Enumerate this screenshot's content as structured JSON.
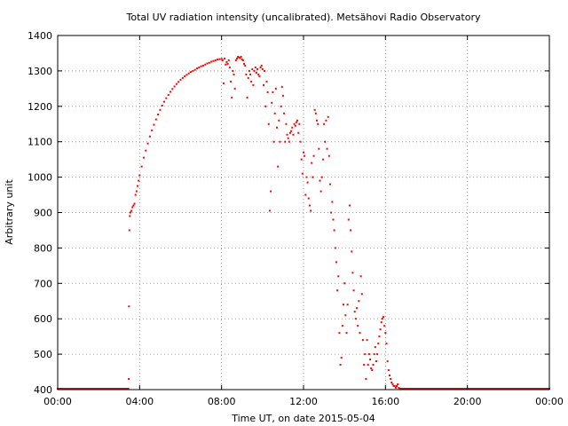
{
  "chart_data": {
    "type": "scatter",
    "title": "Total UV radiation intensity (uncalibrated). Metsähovi Radio Observatory",
    "xlabel": "Time UT, on date 2015-05-04",
    "ylabel": "Arbitrary unit",
    "xlim": [
      0,
      24
    ],
    "ylim": [
      400,
      1400
    ],
    "x_ticks": [
      0,
      4,
      8,
      12,
      16,
      20,
      24
    ],
    "x_tick_labels": [
      "00:00",
      "04:00",
      "08:00",
      "12:00",
      "16:00",
      "20:00",
      "00:00"
    ],
    "y_ticks": [
      400,
      500,
      600,
      700,
      800,
      900,
      1000,
      1100,
      1200,
      1300,
      1400
    ],
    "grid": true,
    "marker_color": "#ff0000",
    "series": [
      {
        "points": [
          [
            0.0,
            400
          ],
          [
            0.25,
            400
          ],
          [
            0.5,
            400
          ],
          [
            0.75,
            400
          ],
          [
            1.0,
            400
          ],
          [
            1.25,
            400
          ],
          [
            1.5,
            400
          ],
          [
            1.75,
            400
          ],
          [
            2.0,
            400
          ],
          [
            2.25,
            400
          ],
          [
            2.5,
            400
          ],
          [
            2.75,
            400
          ],
          [
            3.0,
            400
          ],
          [
            3.25,
            400
          ],
          [
            3.45,
            400
          ],
          [
            3.47,
            430
          ],
          [
            3.48,
            635
          ],
          [
            3.5,
            850
          ],
          [
            3.52,
            890
          ],
          [
            3.55,
            900
          ],
          [
            3.6,
            905
          ],
          [
            3.65,
            915
          ],
          [
            3.7,
            920
          ],
          [
            3.75,
            925
          ],
          [
            3.8,
            950
          ],
          [
            3.85,
            960
          ],
          [
            3.9,
            975
          ],
          [
            3.95,
            990
          ],
          [
            4.0,
            1005
          ],
          [
            4.1,
            1030
          ],
          [
            4.2,
            1055
          ],
          [
            4.3,
            1075
          ],
          [
            4.4,
            1095
          ],
          [
            4.5,
            1115
          ],
          [
            4.6,
            1132
          ],
          [
            4.7,
            1148
          ],
          [
            4.8,
            1163
          ],
          [
            4.9,
            1177
          ],
          [
            5.0,
            1190
          ],
          [
            5.1,
            1202
          ],
          [
            5.2,
            1213
          ],
          [
            5.3,
            1223
          ],
          [
            5.4,
            1232
          ],
          [
            5.5,
            1241
          ],
          [
            5.6,
            1249
          ],
          [
            5.7,
            1256
          ],
          [
            5.8,
            1263
          ],
          [
            5.9,
            1269
          ],
          [
            6.0,
            1275
          ],
          [
            6.1,
            1280
          ],
          [
            6.2,
            1285
          ],
          [
            6.3,
            1289
          ],
          [
            6.4,
            1293
          ],
          [
            6.5,
            1297
          ],
          [
            6.6,
            1300
          ],
          [
            6.7,
            1303
          ],
          [
            6.8,
            1307
          ],
          [
            6.9,
            1310
          ],
          [
            7.0,
            1313
          ],
          [
            7.1,
            1315
          ],
          [
            7.2,
            1318
          ],
          [
            7.3,
            1321
          ],
          [
            7.4,
            1323
          ],
          [
            7.5,
            1326
          ],
          [
            7.6,
            1328
          ],
          [
            7.7,
            1330
          ],
          [
            7.8,
            1332
          ],
          [
            7.9,
            1333
          ],
          [
            8.0,
            1334
          ],
          [
            8.05,
            1330
          ],
          [
            8.1,
            1265
          ],
          [
            8.15,
            1335
          ],
          [
            8.2,
            1318
          ],
          [
            8.25,
            1325
          ],
          [
            8.3,
            1320
          ],
          [
            8.35,
            1330
          ],
          [
            8.4,
            1310
          ],
          [
            8.45,
            1270
          ],
          [
            8.5,
            1225
          ],
          [
            8.55,
            1300
          ],
          [
            8.6,
            1290
          ],
          [
            8.65,
            1250
          ],
          [
            8.7,
            1330
          ],
          [
            8.75,
            1335
          ],
          [
            8.8,
            1340
          ],
          [
            8.85,
            1338
          ],
          [
            8.9,
            1336
          ],
          [
            8.95,
            1340
          ],
          [
            9.0,
            1332
          ],
          [
            9.05,
            1330
          ],
          [
            9.1,
            1320
          ],
          [
            9.15,
            1315
          ],
          [
            9.2,
            1290
          ],
          [
            9.25,
            1225
          ],
          [
            9.3,
            1280
          ],
          [
            9.35,
            1300
          ],
          [
            9.4,
            1290
          ],
          [
            9.45,
            1270
          ],
          [
            9.5,
            1305
          ],
          [
            9.55,
            1260
          ],
          [
            9.6,
            1300
          ],
          [
            9.65,
            1310
          ],
          [
            9.7,
            1295
          ],
          [
            9.75,
            1305
          ],
          [
            9.8,
            1290
          ],
          [
            9.85,
            1285
          ],
          [
            9.9,
            1310
          ],
          [
            9.95,
            1315
          ],
          [
            10.0,
            1305
          ],
          [
            10.05,
            1260
          ],
          [
            10.1,
            1300
          ],
          [
            10.15,
            1200
          ],
          [
            10.2,
            1270
          ],
          [
            10.25,
            1240
          ],
          [
            10.3,
            1150
          ],
          [
            10.35,
            905
          ],
          [
            10.4,
            960
          ],
          [
            10.45,
            1210
          ],
          [
            10.5,
            1240
          ],
          [
            10.55,
            1100
          ],
          [
            10.6,
            1180
          ],
          [
            10.65,
            1250
          ],
          [
            10.7,
            1140
          ],
          [
            10.75,
            1030
          ],
          [
            10.8,
            1160
          ],
          [
            10.85,
            1100
          ],
          [
            10.9,
            1200
          ],
          [
            10.95,
            1255
          ],
          [
            11.0,
            1230
          ],
          [
            11.05,
            1180
          ],
          [
            11.1,
            1100
          ],
          [
            11.15,
            1150
          ],
          [
            11.2,
            1120
          ],
          [
            11.25,
            1110
          ],
          [
            11.3,
            1100
          ],
          [
            11.35,
            1125
          ],
          [
            11.4,
            1130
          ],
          [
            11.45,
            1140
          ],
          [
            11.5,
            1120
          ],
          [
            11.55,
            1150
          ],
          [
            11.6,
            1145
          ],
          [
            11.65,
            1155
          ],
          [
            11.7,
            1160
          ],
          [
            11.75,
            1125
          ],
          [
            11.8,
            1150
          ],
          [
            11.85,
            1100
          ],
          [
            11.9,
            1050
          ],
          [
            11.95,
            1010
          ],
          [
            12.0,
            1070
          ],
          [
            12.05,
            1060
          ],
          [
            12.1,
            950
          ],
          [
            12.15,
            1000
          ],
          [
            12.2,
            985
          ],
          [
            12.25,
            940
          ],
          [
            12.3,
            920
          ],
          [
            12.35,
            905
          ],
          [
            12.4,
            1040
          ],
          [
            12.45,
            1000
          ],
          [
            12.5,
            1060
          ],
          [
            12.55,
            1190
          ],
          [
            12.6,
            1180
          ],
          [
            12.65,
            1160
          ],
          [
            12.7,
            1150
          ],
          [
            12.75,
            1080
          ],
          [
            12.8,
            990
          ],
          [
            12.85,
            960
          ],
          [
            12.9,
            1000
          ],
          [
            12.95,
            1050
          ],
          [
            13.0,
            1150
          ],
          [
            13.05,
            1100
          ],
          [
            13.1,
            1160
          ],
          [
            13.15,
            1080
          ],
          [
            13.2,
            1170
          ],
          [
            13.25,
            1060
          ],
          [
            13.3,
            980
          ],
          [
            13.35,
            900
          ],
          [
            13.4,
            930
          ],
          [
            13.45,
            880
          ],
          [
            13.5,
            850
          ],
          [
            13.55,
            800
          ],
          [
            13.6,
            760
          ],
          [
            13.65,
            680
          ],
          [
            13.7,
            720
          ],
          [
            13.75,
            560
          ],
          [
            13.8,
            470
          ],
          [
            13.85,
            490
          ],
          [
            13.9,
            580
          ],
          [
            13.95,
            640
          ],
          [
            14.0,
            700
          ],
          [
            14.05,
            610
          ],
          [
            14.1,
            560
          ],
          [
            14.15,
            640
          ],
          [
            14.2,
            880
          ],
          [
            14.25,
            920
          ],
          [
            14.3,
            850
          ],
          [
            14.35,
            790
          ],
          [
            14.4,
            730
          ],
          [
            14.45,
            680
          ],
          [
            14.5,
            620
          ],
          [
            14.55,
            600
          ],
          [
            14.6,
            630
          ],
          [
            14.65,
            580
          ],
          [
            14.7,
            650
          ],
          [
            14.75,
            560
          ],
          [
            14.8,
            720
          ],
          [
            14.85,
            670
          ],
          [
            14.9,
            540
          ],
          [
            14.95,
            470
          ],
          [
            15.0,
            500
          ],
          [
            15.05,
            430
          ],
          [
            15.1,
            540
          ],
          [
            15.15,
            470
          ],
          [
            15.2,
            500
          ],
          [
            15.25,
            485
          ],
          [
            15.3,
            460
          ],
          [
            15.35,
            455
          ],
          [
            15.4,
            470
          ],
          [
            15.45,
            500
          ],
          [
            15.5,
            520
          ],
          [
            15.55,
            480
          ],
          [
            15.6,
            500
          ],
          [
            15.65,
            530
          ],
          [
            15.7,
            550
          ],
          [
            15.75,
            570
          ],
          [
            15.8,
            590
          ],
          [
            15.85,
            600
          ],
          [
            15.9,
            605
          ],
          [
            15.95,
            580
          ],
          [
            16.0,
            560
          ],
          [
            16.05,
            530
          ],
          [
            16.1,
            480
          ],
          [
            16.15,
            455
          ],
          [
            16.2,
            440
          ],
          [
            16.25,
            430
          ],
          [
            16.3,
            420
          ],
          [
            16.35,
            415
          ],
          [
            16.4,
            410
          ],
          [
            16.45,
            410
          ],
          [
            16.5,
            405
          ],
          [
            16.55,
            410
          ],
          [
            16.6,
            415
          ],
          [
            16.65,
            405
          ],
          [
            16.7,
            400
          ],
          [
            16.75,
            400
          ],
          [
            17.0,
            400
          ],
          [
            17.5,
            400
          ],
          [
            18.0,
            400
          ],
          [
            18.5,
            400
          ],
          [
            19.0,
            400
          ],
          [
            19.5,
            400
          ],
          [
            20.0,
            400
          ],
          [
            20.5,
            400
          ],
          [
            21.0,
            400
          ],
          [
            21.5,
            400
          ],
          [
            22.0,
            400
          ],
          [
            22.5,
            400
          ],
          [
            23.0,
            400
          ],
          [
            23.5,
            400
          ],
          [
            24.0,
            400
          ]
        ]
      }
    ]
  }
}
